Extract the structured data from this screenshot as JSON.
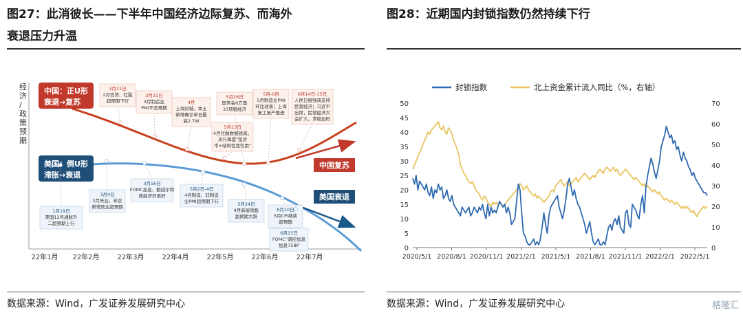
{
  "left": {
    "title_line1": "图27：此消彼长——下半年中国经济边际复苏、而海外",
    "title_line2": "衰退压力升温",
    "source": "数据来源：Wind，广发证券发展研究中心",
    "diagram": {
      "y_axis_label": "经济/政策预期",
      "x_ticks": [
        "22年1月",
        "22年2月",
        "22年3月",
        "22年4月",
        "22年5月",
        "22年6月",
        "22年7月"
      ],
      "china_label": "中国：正U形\n衰退→复苏",
      "us_label": "美国：倒U形\n滞胀→衰退",
      "china_trend": "中国复苏",
      "us_trend": "美国衰退",
      "china_events": [
        {
          "id": "cn1",
          "text": "3月11日\n2月信贷、社融\n超预期下行"
        },
        {
          "id": "cn2",
          "text": "3月31日\n3月制造业\nPMI不及预期"
        },
        {
          "id": "cn3",
          "text": "4月\n上海封城，本土\n新增确诊单日最\n高2.7W"
        },
        {
          "id": "cn4",
          "text": "5月13日\n4月社融数据锐减，\n央行再提\"宽货\n币+结构性宽信用\""
        },
        {
          "id": "cn5",
          "text": "5月26日\n国常会6方面\n33项稳经济"
        },
        {
          "id": "cn6",
          "text": "5月-6月\n5月制造业PMI\n环比改善；上海\n复工复产推进"
        },
        {
          "id": "cn7",
          "text": "6月14日-15日\n人民日报强调支持\n民营经济；习近平\n出席，民营经济大\n会扩大，求稳加码"
        }
      ],
      "us_events": [
        {
          "id": "us1",
          "text": "1月19日\n美国12月通胀升\n二超预期上行"
        },
        {
          "id": "us2",
          "text": "3月4日\n2月失业，非农\n新增就业超预期"
        },
        {
          "id": "us3",
          "text": "3月16日\nFOMC加息，鲍威尔称\n政经济仍很好"
        },
        {
          "id": "us4",
          "text": "5月2日-4日\n4月制造、非制造\n业PMI超预期下行"
        },
        {
          "id": "us5",
          "text": "5月24日\n4月新屋销售\n超预期大跌"
        },
        {
          "id": "us6",
          "text": "6月10日\n5月CPI继续\n超预期"
        },
        {
          "id": "us7",
          "text": "6月15日\nFOMC“调控加息\n加息75BP"
        }
      ]
    }
  },
  "right": {
    "title": "图28：近期国内封锁指数仍然持续下行",
    "source": "数据来源：Wind，广发证券发展研究中心",
    "watermark": "格隆汇"
  },
  "chart_data": {
    "type": "line",
    "x_ticks": [
      "2020/5/1",
      "2020/8/1",
      "2020/11/1",
      "2021/2/1",
      "2021/5/1",
      "2021/8/1",
      "2021/11/1",
      "2022/2/1",
      "2022/5/1"
    ],
    "y_left_ticks": [
      0,
      5,
      10,
      15,
      20,
      25,
      30,
      35,
      40,
      45,
      50
    ],
    "y_right_ticks": [
      0,
      10,
      20,
      30,
      40,
      50,
      60,
      70
    ],
    "ylim_left": [
      0,
      50
    ],
    "ylim_right": [
      0,
      70
    ],
    "legend_position": "top",
    "series": [
      {
        "name": "封锁指数",
        "axis": "left",
        "color": "#2e6ab0",
        "values": [
          24,
          22,
          25,
          20,
          23,
          22,
          21,
          20,
          22,
          19,
          18,
          21,
          17,
          20,
          19,
          22,
          20,
          21,
          17,
          18,
          20,
          17,
          16,
          18,
          15,
          14,
          13,
          12,
          11,
          14,
          13,
          12,
          13,
          14,
          11,
          12,
          14,
          13,
          12,
          14,
          13,
          15,
          12,
          10,
          15,
          11,
          14,
          12,
          13,
          12,
          14,
          16,
          15,
          14,
          15,
          12,
          14,
          12,
          8,
          9,
          10,
          16,
          22,
          20,
          12,
          5,
          4,
          2,
          1,
          1,
          2,
          3,
          1,
          2,
          1,
          3,
          7,
          12,
          8,
          5,
          11,
          14,
          15,
          16,
          17,
          18,
          14,
          12,
          10,
          13,
          17,
          22,
          24,
          21,
          18,
          20,
          17,
          15,
          14,
          12,
          10,
          8,
          5,
          7,
          9,
          5,
          2,
          1,
          2,
          3,
          1,
          1,
          2,
          1,
          4,
          7,
          8,
          6,
          9,
          10,
          8,
          11,
          7,
          6,
          5,
          12,
          13,
          8,
          7,
          15,
          14,
          13,
          11,
          10,
          15,
          18,
          12,
          21,
          25,
          28,
          31,
          29,
          26,
          24,
          27,
          30,
          35,
          37,
          39,
          42,
          40,
          38,
          39,
          36,
          37,
          34,
          35,
          32,
          30,
          33,
          31,
          30,
          28,
          27,
          25,
          26,
          24,
          23,
          22,
          21,
          20,
          19,
          19,
          18
        ]
      },
      {
        "name": "北上资金累计流入同比（%，右轴）",
        "axis": "right",
        "color": "#e8c45f",
        "values": [
          38,
          40,
          42,
          44,
          46,
          48,
          50,
          52,
          54,
          56,
          55,
          57,
          58,
          59,
          60,
          61,
          58,
          57,
          59,
          56,
          55,
          58,
          57,
          55,
          52,
          50,
          48,
          45,
          40,
          38,
          36,
          35,
          33,
          32,
          31,
          32,
          30,
          28,
          27,
          26,
          24,
          23,
          25,
          24,
          22,
          21,
          20,
          22,
          21,
          22,
          21,
          22,
          21,
          20,
          21,
          22,
          23,
          24,
          25,
          26,
          27,
          28,
          29,
          31,
          30,
          28,
          29,
          30,
          28,
          27,
          26,
          25,
          26,
          24,
          25,
          24,
          23,
          22,
          23,
          24,
          25,
          27,
          28,
          27,
          30,
          31,
          32,
          33,
          31,
          30,
          31,
          32,
          30,
          31,
          32,
          33,
          34,
          32,
          33,
          34,
          35,
          36,
          35,
          34,
          33,
          34,
          35,
          34,
          36,
          37,
          38,
          37,
          36,
          38,
          39,
          38,
          37,
          38,
          39,
          37,
          38,
          36,
          35,
          36,
          37,
          38,
          37,
          36,
          35,
          34,
          33,
          34,
          33,
          32,
          31,
          30,
          31,
          29,
          30,
          29,
          28,
          27,
          28,
          27,
          26,
          27,
          25,
          24,
          23,
          24,
          23,
          22,
          23,
          22,
          21,
          22,
          21,
          20,
          19,
          20,
          19,
          20,
          19,
          18,
          17,
          18,
          16,
          15,
          17,
          18,
          19,
          20,
          19,
          20
        ]
      }
    ]
  }
}
